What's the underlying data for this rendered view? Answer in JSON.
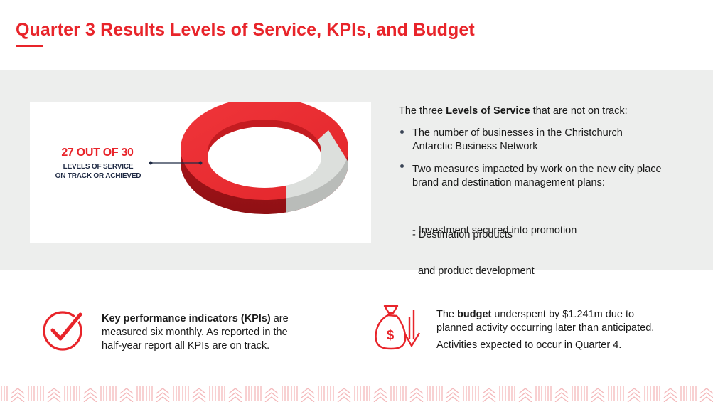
{
  "header": {
    "title": "Quarter 3 Results Levels of Service, KPIs, and Budget"
  },
  "levels_of_service": {
    "headline": "27 OUT OF 30",
    "sub_line1": "LEVELS OF SERVICE",
    "sub_line2": "ON TRACK OR ACHIEVED",
    "on_track": 27,
    "total": 30,
    "colors": {
      "on_track": "#e8242a",
      "not_on_track": "#d9dcd9"
    }
  },
  "not_on_track": {
    "intro_pre": "The three ",
    "intro_bold": "Levels of Service",
    "intro_post": " that are not on track:",
    "items": [
      {
        "line1": "The number of businesses in the Christchurch",
        "line2": "Antarctic Business Network"
      },
      {
        "line1": "Two measures impacted by work on the new city place",
        "line2": "brand and destination management plans:"
      }
    ],
    "sub_items": [
      {
        "line1": "- Investment secured into promotion",
        "line2": "  and product development"
      },
      {
        "line1": "- Destination products"
      }
    ]
  },
  "kpis": {
    "bold": "Key performance indicators (KPIs)",
    "line1_rest": " are",
    "line2": "measured six monthly. As reported in the",
    "line3": "half-year report all KPIs are on track."
  },
  "budget": {
    "pre": "The ",
    "bold": "budget",
    "line1_rest": " underspent by $1.241m due to",
    "line2": "planned activity occurring later than anticipated.",
    "line3": "Activities expected to occur in Quarter 4."
  },
  "theme": {
    "accent": "#e8242a",
    "panel_bg": "#edeeed"
  }
}
